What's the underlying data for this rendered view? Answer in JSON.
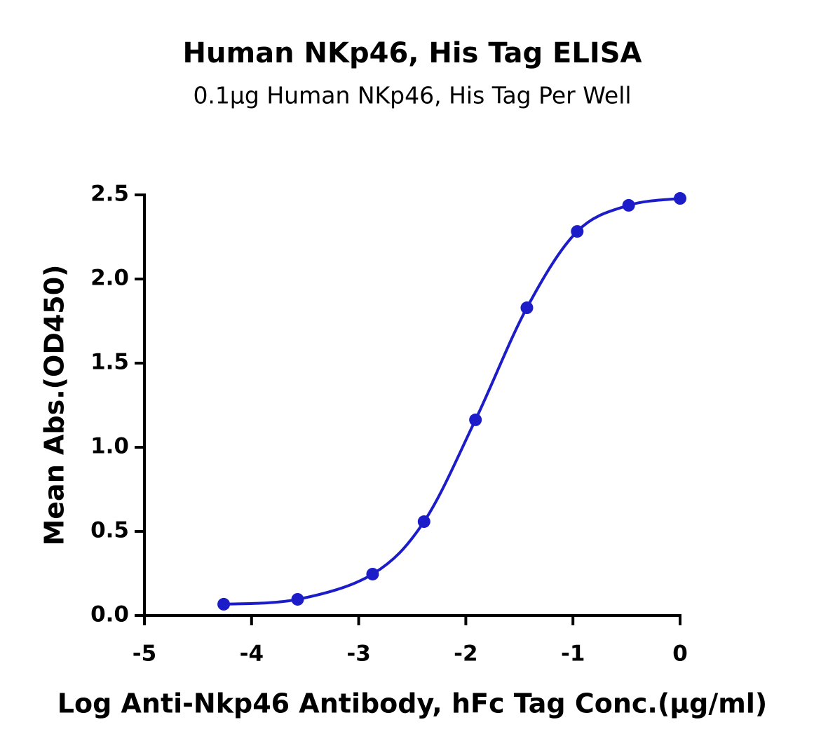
{
  "chart_data": {
    "type": "scatter",
    "title": "Human NKp46, His Tag ELISA",
    "subtitle": "0.1μg Human NKp46, His Tag Per Well",
    "x_label": "Log Anti-Nkp46 Antibody, hFc Tag Conc.(μg/ml)",
    "y_label": "Mean Abs.(OD450)",
    "x": [
      -4.26,
      -3.57,
      -2.87,
      -2.39,
      -1.91,
      -1.43,
      -0.96,
      -0.48,
      0
    ],
    "series": [
      {
        "color": "#1c1cc8",
        "values": [
          0.067,
          0.096,
          0.246,
          0.558,
          1.163,
          1.829,
          2.283,
          2.438,
          2.479
        ]
      }
    ],
    "xlim": [
      -5,
      0
    ],
    "xticks": [
      -5,
      -4,
      -3,
      -2,
      -1,
      0
    ],
    "ylim": [
      0,
      2.5
    ],
    "yticks": [
      {
        "value": 0,
        "label": "0.0"
      },
      {
        "value": 0.5,
        "label": "0.5"
      },
      {
        "value": 1,
        "label": "1.0"
      },
      {
        "value": 1.5,
        "label": "1.5"
      },
      {
        "value": 2,
        "label": "2.0"
      },
      {
        "value": 2.5,
        "label": "2.5"
      }
    ]
  }
}
